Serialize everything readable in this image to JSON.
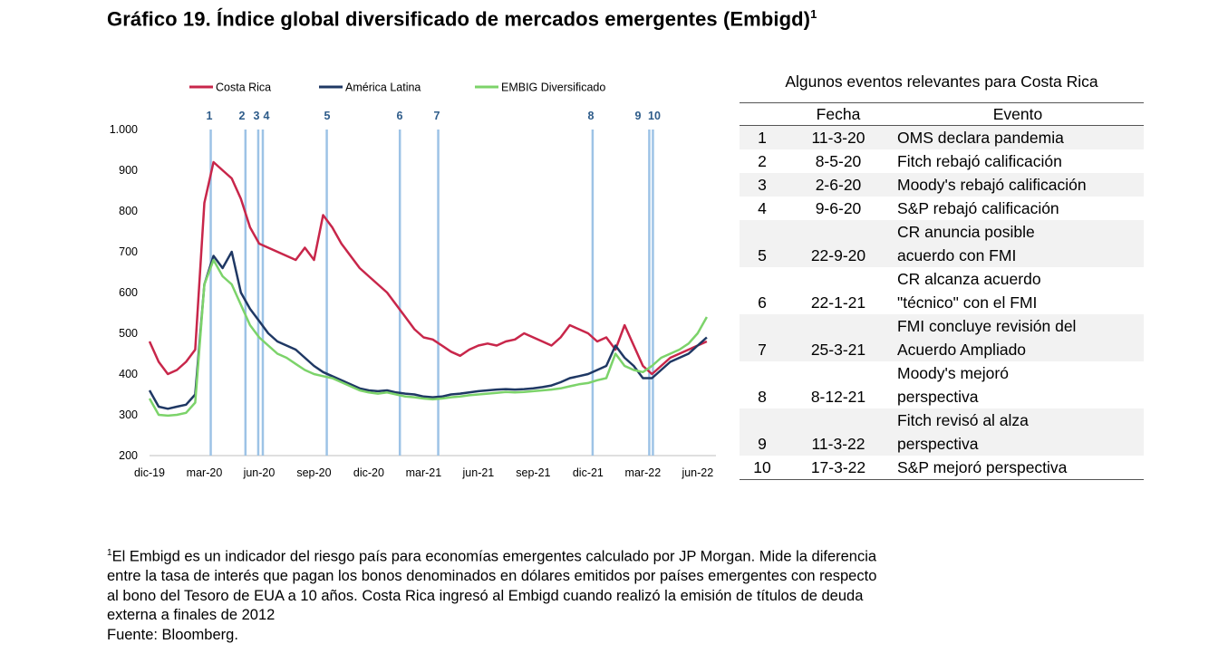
{
  "title": "Gráfico 19. Índice global diversificado de mercados emergentes (Embigd)",
  "title_sup": "1",
  "chart_data": {
    "type": "line",
    "title": "Gráfico 19. Índice global diversificado de mercados emergentes (Embigd)",
    "xlabel": "",
    "ylabel": "",
    "ylim": [
      200,
      1000
    ],
    "yticks": [
      "200",
      "300",
      "400",
      "500",
      "600",
      "700",
      "800",
      "900",
      "1.000"
    ],
    "xticks": [
      "dic-19",
      "mar-20",
      "jun-20",
      "sep-20",
      "dic-20",
      "mar-21",
      "jun-21",
      "sep-21",
      "dic-21",
      "mar-22",
      "jun-22"
    ],
    "x_months_since_dic19": [
      0,
      0.5,
      1,
      1.5,
      2,
      2.5,
      3,
      3.5,
      4,
      4.5,
      5,
      5.5,
      6,
      6.5,
      7,
      7.5,
      8,
      8.5,
      9,
      9.5,
      10,
      10.5,
      11,
      11.5,
      12,
      12.5,
      13,
      13.5,
      14,
      14.5,
      15,
      15.5,
      16,
      16.5,
      17,
      17.5,
      18,
      18.5,
      19,
      19.5,
      20,
      20.5,
      21,
      21.5,
      22,
      22.5,
      23,
      23.5,
      24,
      24.5,
      25,
      25.5,
      26,
      26.5,
      27,
      27.5,
      28,
      28.5,
      29,
      29.5,
      30,
      30.5
    ],
    "series": [
      {
        "name": "Costa Rica",
        "color": "#c8264a",
        "values": [
          480,
          430,
          400,
          410,
          430,
          460,
          820,
          920,
          900,
          880,
          830,
          760,
          720,
          710,
          700,
          690,
          680,
          710,
          680,
          790,
          760,
          720,
          690,
          660,
          640,
          620,
          600,
          570,
          540,
          510,
          490,
          485,
          470,
          455,
          445,
          460,
          470,
          475,
          470,
          480,
          485,
          500,
          490,
          480,
          470,
          490,
          520,
          510,
          500,
          480,
          490,
          460,
          520,
          470,
          420,
          400,
          420,
          440,
          450,
          460,
          470,
          480
        ]
      },
      {
        "name": "América Latina",
        "color": "#1f3864",
        "values": [
          360,
          320,
          315,
          320,
          325,
          350,
          620,
          690,
          660,
          700,
          600,
          560,
          530,
          500,
          480,
          470,
          460,
          440,
          420,
          405,
          395,
          385,
          375,
          365,
          360,
          358,
          360,
          355,
          352,
          350,
          345,
          343,
          345,
          350,
          352,
          355,
          358,
          360,
          362,
          363,
          362,
          363,
          365,
          368,
          372,
          380,
          390,
          395,
          400,
          410,
          420,
          470,
          440,
          420,
          390,
          390,
          410,
          430,
          440,
          450,
          470,
          490
        ]
      },
      {
        "name": "EMBIG Diversificado",
        "color": "#7cd36a",
        "values": [
          340,
          300,
          298,
          300,
          305,
          330,
          620,
          680,
          640,
          620,
          570,
          520,
          490,
          470,
          450,
          440,
          425,
          410,
          400,
          395,
          390,
          380,
          370,
          360,
          355,
          352,
          355,
          350,
          345,
          343,
          340,
          338,
          340,
          343,
          345,
          348,
          350,
          352,
          354,
          356,
          355,
          356,
          358,
          360,
          362,
          365,
          370,
          375,
          378,
          385,
          390,
          450,
          420,
          410,
          405,
          420,
          440,
          450,
          460,
          475,
          500,
          540
        ]
      }
    ],
    "event_markers": [
      {
        "label": "1",
        "month": 3.35
      },
      {
        "label": "2",
        "month": 5.25
      },
      {
        "label": "3",
        "month": 5.95
      },
      {
        "label": "4",
        "month": 6.2
      },
      {
        "label": "5",
        "month": 9.7
      },
      {
        "label": "6",
        "month": 13.7
      },
      {
        "label": "7",
        "month": 15.8
      },
      {
        "label": "8",
        "month": 24.25
      },
      {
        "label": "9",
        "month": 27.35
      },
      {
        "label": "10",
        "month": 27.55
      }
    ]
  },
  "table": {
    "caption": "Algunos eventos relevantes para Costa Rica",
    "headers": [
      "",
      "Fecha",
      "Evento"
    ],
    "rows": [
      {
        "n": "1",
        "fecha": "11-3-20",
        "evento": [
          "OMS declara pandemia"
        ]
      },
      {
        "n": "2",
        "fecha": "8-5-20",
        "evento": [
          "Fitch rebajó calificación"
        ]
      },
      {
        "n": "3",
        "fecha": "2-6-20",
        "evento": [
          "Moody's rebajó calificación"
        ]
      },
      {
        "n": "4",
        "fecha": "9-6-20",
        "evento": [
          "S&P rebajó calificación"
        ]
      },
      {
        "n": "5",
        "fecha": "22-9-20",
        "evento": [
          "CR anuncia posible",
          "acuerdo con FMI"
        ]
      },
      {
        "n": "6",
        "fecha": "22-1-21",
        "evento": [
          "CR alcanza acuerdo",
          "\"técnico\" con el FMI"
        ]
      },
      {
        "n": "7",
        "fecha": "25-3-21",
        "evento": [
          "FMI concluye revisión del",
          "Acuerdo Ampliado"
        ]
      },
      {
        "n": "8",
        "fecha": "8-12-21",
        "evento": [
          "Moody's mejoró",
          "perspectiva"
        ]
      },
      {
        "n": "9",
        "fecha": "11-3-22",
        "evento": [
          "Fitch revisó al alza",
          "perspectiva"
        ]
      },
      {
        "n": "10",
        "fecha": "17-3-22",
        "evento": [
          "S&P mejoró perspectiva"
        ]
      }
    ]
  },
  "notes": {
    "footnote_mark": "1",
    "lines": [
      "El Embigd es un indicador del riesgo país para economías emergentes calculado por JP Morgan. Mide la diferencia",
      "entre la tasa de interés que pagan los bonos denominados en dólares emitidos por países emergentes con respecto",
      "al bono del Tesoro de EUA a 10 años. Costa Rica ingresó al Embigd cuando realizó la emisión de títulos de deuda",
      "externa a finales de 2012"
    ],
    "source": "Fuente: Bloomberg."
  }
}
